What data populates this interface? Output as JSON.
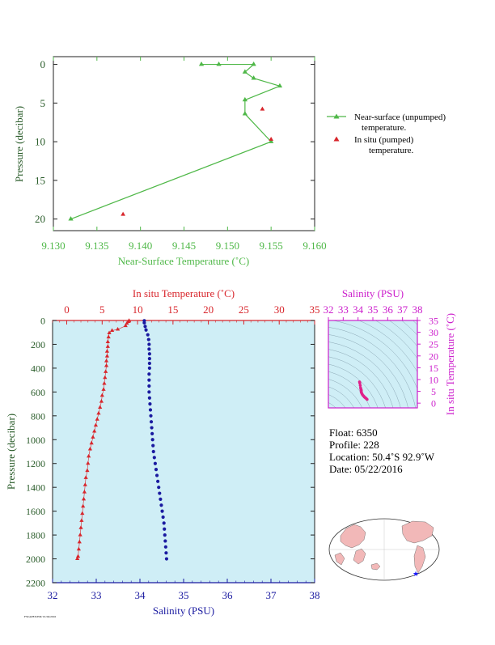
{
  "chart_data": [
    {
      "type": "line",
      "xlabel": "Near-Surface Temperature (˚C)",
      "ylabel": "Pressure (decibar)",
      "xlim": [
        9.13,
        9.16
      ],
      "ylim": [
        21.5,
        -1
      ],
      "x_ticks": [
        "9.130",
        "9.135",
        "9.140",
        "9.145",
        "9.150",
        "9.155",
        "9.160"
      ],
      "y_ticks": [
        "0",
        "5",
        "10",
        "15",
        "20"
      ],
      "series": [
        {
          "name": "Near-surface (unpumped) temperature.",
          "color": "#4fb848",
          "points": [
            [
              9.147,
              0.0
            ],
            [
              9.149,
              0.0
            ],
            [
              9.153,
              0.0
            ],
            [
              9.152,
              1.0
            ],
            [
              9.153,
              1.8
            ],
            [
              9.156,
              2.8
            ],
            [
              9.152,
              4.6
            ],
            [
              9.152,
              6.4
            ],
            [
              9.155,
              10.0
            ],
            [
              9.132,
              20.0
            ]
          ]
        },
        {
          "name": "In situ (pumped) temperature.",
          "color": "#d8262c",
          "points": [
            [
              9.154,
              5.8
            ],
            [
              9.155,
              9.7
            ],
            [
              9.138,
              19.4
            ]
          ]
        }
      ],
      "legend": [
        {
          "line1": "Near-surface (unpumped)",
          "line2": "temperature."
        },
        {
          "line1": "In situ (pumped)",
          "line2": "temperature."
        }
      ]
    },
    {
      "type": "scatter",
      "ylabel": "Pressure (decibar)",
      "top_xlabel": "In situ Temperature (˚C)",
      "bottom_xlabel": "Salinity (PSU)",
      "temp_lim": [
        -2,
        35
      ],
      "sal_lim": [
        32,
        38
      ],
      "ylim": [
        2200,
        0
      ],
      "top_ticks": [
        "0",
        "5",
        "10",
        "15",
        "20",
        "25",
        "30",
        "35"
      ],
      "bottom_ticks": [
        "32",
        "33",
        "34",
        "35",
        "36",
        "37",
        "38"
      ],
      "y_ticks": [
        "0",
        "200",
        "400",
        "600",
        "800",
        "1000",
        "1200",
        "1400",
        "1600",
        "1800",
        "2000",
        "2200"
      ],
      "background": "#cfeef6",
      "temperature": {
        "color": "#d8262c",
        "points": [
          [
            8.8,
            2
          ],
          [
            8.7,
            10
          ],
          [
            8.5,
            25
          ],
          [
            8.3,
            45
          ],
          [
            7.2,
            75
          ],
          [
            6.4,
            85
          ],
          [
            6.0,
            105
          ],
          [
            5.9,
            140
          ],
          [
            5.8,
            180
          ],
          [
            5.8,
            220
          ],
          [
            5.7,
            260
          ],
          [
            5.7,
            300
          ],
          [
            5.6,
            340
          ],
          [
            5.6,
            380
          ],
          [
            5.5,
            430
          ],
          [
            5.4,
            480
          ],
          [
            5.3,
            530
          ],
          [
            5.2,
            580
          ],
          [
            5.0,
            630
          ],
          [
            4.9,
            680
          ],
          [
            4.7,
            730
          ],
          [
            4.5,
            780
          ],
          [
            4.3,
            830
          ],
          [
            4.1,
            880
          ],
          [
            3.9,
            930
          ],
          [
            3.7,
            980
          ],
          [
            3.5,
            1030
          ],
          [
            3.3,
            1080
          ],
          [
            3.1,
            1140
          ],
          [
            3.0,
            1200
          ],
          [
            2.9,
            1260
          ],
          [
            2.7,
            1320
          ],
          [
            2.6,
            1380
          ],
          [
            2.5,
            1440
          ],
          [
            2.4,
            1500
          ],
          [
            2.3,
            1560
          ],
          [
            2.2,
            1620
          ],
          [
            2.1,
            1680
          ],
          [
            2.0,
            1740
          ],
          [
            1.9,
            1800
          ],
          [
            1.8,
            1860
          ],
          [
            1.7,
            1920
          ],
          [
            1.6,
            1980
          ],
          [
            1.5,
            2000
          ]
        ]
      },
      "salinity": {
        "color": "#1a1aa0",
        "points": [
          [
            34.1,
            2
          ],
          [
            34.1,
            20
          ],
          [
            34.12,
            50
          ],
          [
            34.14,
            80
          ],
          [
            34.18,
            120
          ],
          [
            34.2,
            160
          ],
          [
            34.21,
            200
          ],
          [
            34.21,
            240
          ],
          [
            34.22,
            280
          ],
          [
            34.22,
            320
          ],
          [
            34.22,
            360
          ],
          [
            34.22,
            400
          ],
          [
            34.21,
            450
          ],
          [
            34.21,
            500
          ],
          [
            34.21,
            550
          ],
          [
            34.21,
            600
          ],
          [
            34.22,
            650
          ],
          [
            34.23,
            700
          ],
          [
            34.24,
            750
          ],
          [
            34.25,
            800
          ],
          [
            34.26,
            850
          ],
          [
            34.27,
            900
          ],
          [
            34.28,
            950
          ],
          [
            34.29,
            1000
          ],
          [
            34.3,
            1050
          ],
          [
            34.31,
            1100
          ],
          [
            34.33,
            1150
          ],
          [
            34.35,
            1200
          ],
          [
            34.37,
            1250
          ],
          [
            34.39,
            1300
          ],
          [
            34.41,
            1350
          ],
          [
            34.43,
            1400
          ],
          [
            34.45,
            1450
          ],
          [
            34.47,
            1500
          ],
          [
            34.49,
            1550
          ],
          [
            34.51,
            1600
          ],
          [
            34.53,
            1650
          ],
          [
            34.55,
            1700
          ],
          [
            34.56,
            1750
          ],
          [
            34.57,
            1800
          ],
          [
            34.58,
            1850
          ],
          [
            34.59,
            1900
          ],
          [
            34.6,
            1950
          ],
          [
            34.61,
            2000
          ]
        ]
      }
    },
    {
      "type": "scatter",
      "xlabel": "Salinity (PSU)",
      "ylabel": "In situ Temperature (˚C)",
      "xlim": [
        32,
        38
      ],
      "ylim": [
        -2,
        35
      ],
      "x_ticks": [
        "32",
        "33",
        "34",
        "35",
        "36",
        "37",
        "38"
      ],
      "y_ticks": [
        "0",
        "5",
        "10",
        "15",
        "20",
        "25",
        "30",
        "35"
      ],
      "color": "#e0208a",
      "points": [
        [
          34.1,
          9.0
        ],
        [
          34.12,
          8.5
        ],
        [
          34.15,
          7.5
        ],
        [
          34.17,
          6.5
        ],
        [
          34.2,
          5.9
        ],
        [
          34.21,
          5.6
        ],
        [
          34.22,
          5.3
        ],
        [
          34.21,
          5.0
        ],
        [
          34.22,
          4.6
        ],
        [
          34.25,
          4.2
        ],
        [
          34.28,
          3.8
        ],
        [
          34.33,
          3.3
        ],
        [
          34.38,
          3.0
        ],
        [
          34.43,
          2.6
        ],
        [
          34.49,
          2.3
        ],
        [
          34.55,
          2.0
        ],
        [
          34.61,
          1.6
        ]
      ]
    }
  ],
  "float_info": {
    "float": "Float:  6350",
    "profile": "Profile:  228",
    "location": "Location:  50.4˚S  92.9˚W",
    "date": "Date:  05/22/2016"
  },
  "footer": "FSI/APEX/EM/ 01/04/2016"
}
